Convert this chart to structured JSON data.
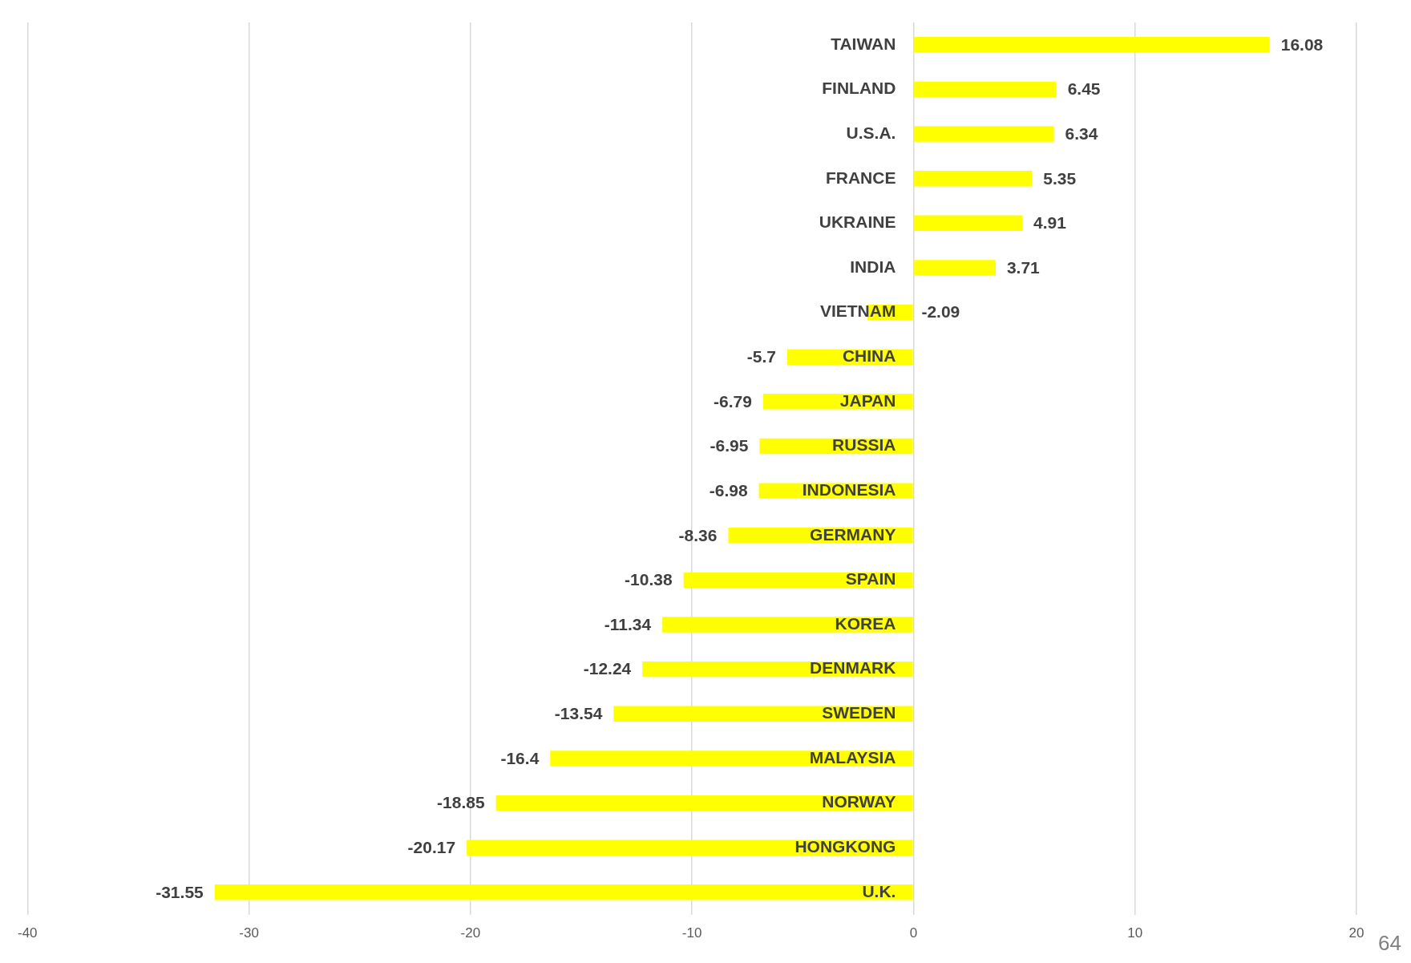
{
  "chart_data": {
    "type": "bar",
    "orientation": "horizontal",
    "categories": [
      "TAIWAN",
      "FINLAND",
      "U.S.A.",
      "FRANCE",
      "UKRAINE",
      "INDIA",
      "VIETNAM",
      "CHINA",
      "JAPAN",
      "RUSSIA",
      "INDONESIA",
      "GERMANY",
      "SPAIN",
      "KOREA",
      "DENMARK",
      "SWEDEN",
      "MALAYSIA",
      "NORWAY",
      "HONGKONG",
      "U.K."
    ],
    "values": [
      16.08,
      6.45,
      6.34,
      5.35,
      4.91,
      3.71,
      -2.09,
      -5.7,
      -6.79,
      -6.95,
      -6.98,
      -8.36,
      -10.38,
      -11.34,
      -12.24,
      -13.54,
      -16.4,
      -18.85,
      -20.17,
      -31.55
    ],
    "color": "#ffff00",
    "data_labels": true,
    "xlim": [
      -40,
      20
    ],
    "xticks": [
      -40,
      -30,
      -20,
      -10,
      0,
      10,
      20
    ],
    "grid": "x",
    "legend": false,
    "annotations": [
      "64"
    ]
  }
}
